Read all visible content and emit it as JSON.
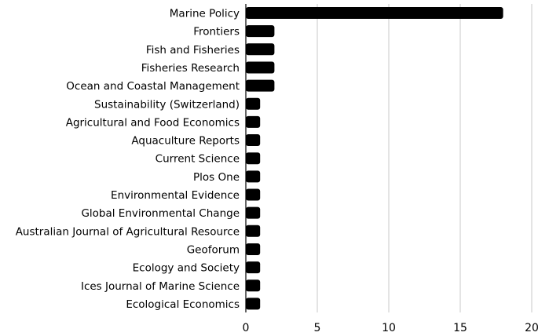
{
  "chart_data": {
    "type": "bar",
    "orientation": "horizontal",
    "title": "",
    "xlabel": "",
    "ylabel": "",
    "categories": [
      "Marine Policy",
      "Frontiers",
      "Fish and Fisheries",
      "Fisheries Research",
      "Ocean and Coastal Management",
      "Sustainability (Switzerland)",
      "Agricultural and Food Economics",
      "Aquaculture Reports",
      "Current Science",
      "Plos One",
      "Environmental Evidence",
      "Global Environmental Change",
      "Australian Journal of Agricultural Resource",
      "Geoforum",
      "Ecology and Society",
      "Ices Journal of Marine Science",
      "Ecological Economics"
    ],
    "values": [
      18,
      2,
      2,
      2,
      2,
      1,
      1,
      1,
      1,
      1,
      1,
      1,
      1,
      1,
      1,
      1,
      1
    ],
    "xlim": [
      0,
      20
    ],
    "xticks": [
      0,
      5,
      10,
      15,
      20
    ],
    "grid": true,
    "legend": "none",
    "bar_color": "#000000",
    "grid_color": "#c8c8c8"
  }
}
